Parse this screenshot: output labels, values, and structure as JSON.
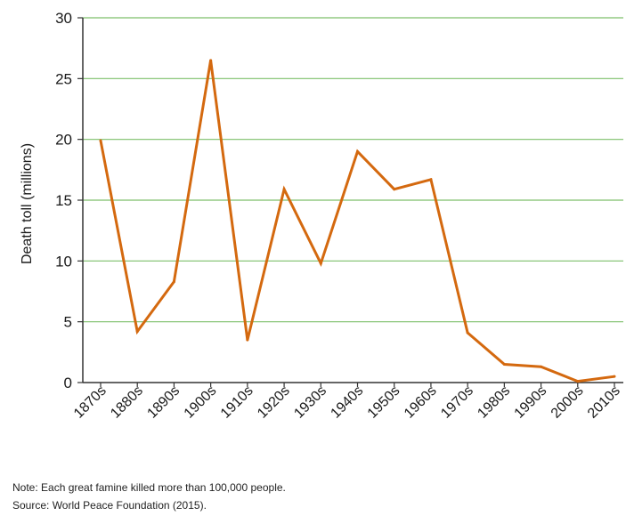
{
  "chart_data": {
    "type": "line",
    "title": "",
    "xlabel": "",
    "ylabel": "Death toll (millions)",
    "ylim": [
      0,
      30
    ],
    "yticks": [
      "0",
      "5",
      "10",
      "15",
      "20",
      "25",
      "30"
    ],
    "categories": [
      "1870s",
      "1880s",
      "1890s",
      "1900s",
      "1910s",
      "1920s",
      "1930s",
      "1940s",
      "1950s",
      "1960s",
      "1970s",
      "1980s",
      "1990s",
      "2000s",
      "2010s"
    ],
    "series": [
      {
        "values": [
          19.9,
          4.2,
          8.3,
          26.5,
          3.5,
          15.9,
          9.8,
          19.0,
          15.9,
          16.7,
          4.1,
          1.5,
          1.3,
          0.1,
          0.5
        ]
      }
    ],
    "grid": "horizontal",
    "colors": {
      "line": "#d4690f",
      "grid": "#7dbf6a",
      "axis": "#333333"
    }
  },
  "notes": {
    "note": "Note: Each great famine killed more than 100,000 people.",
    "source": "Source: World Peace Foundation (2015)."
  }
}
